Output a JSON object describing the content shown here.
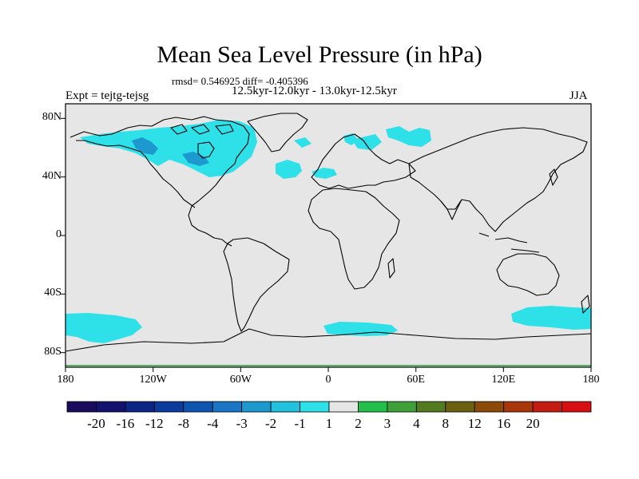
{
  "title": "Mean Sea Level Pressure (in hPa)",
  "stats": "rmsd= 0.546925 diff= -0.405396",
  "period": "12.5kyr-12.0kyr - 13.0kyr-12.5kyr",
  "experiment": "Expt = tejtg-tejsg",
  "season": "JJA",
  "axes": {
    "x_ticks": [
      {
        "value": -180,
        "label": "180"
      },
      {
        "value": -120,
        "label": "120W"
      },
      {
        "value": -60,
        "label": "60W"
      },
      {
        "value": 0,
        "label": "0"
      },
      {
        "value": 60,
        "label": "60E"
      },
      {
        "value": 120,
        "label": "120E"
      },
      {
        "value": 180,
        "label": "180"
      }
    ],
    "y_ticks": [
      {
        "value": 80,
        "label": "80N"
      },
      {
        "value": 40,
        "label": "40N"
      },
      {
        "value": 0,
        "label": "0"
      },
      {
        "value": -40,
        "label": "40S"
      },
      {
        "value": -80,
        "label": "80S"
      }
    ],
    "lon_range": [
      -180,
      180
    ],
    "lat_range": [
      -90,
      90
    ]
  },
  "colorbar": {
    "colors": [
      "#1a0b5e",
      "#13136f",
      "#0b2585",
      "#0b3b9c",
      "#0e55b0",
      "#1a76c4",
      "#1e99d0",
      "#22c1de",
      "#2ee0e8",
      "#e6e6e6",
      "#22c04a",
      "#3fa03a",
      "#537a1f",
      "#6b5f10",
      "#8b4a08",
      "#a8380c",
      "#c21d10",
      "#d80f10"
    ],
    "labels": [
      "-20",
      "-16",
      "-12",
      "-8",
      "-4",
      "-3",
      "-2",
      "-1",
      "1",
      "2",
      "3",
      "4",
      "8",
      "12",
      "16",
      "20"
    ]
  },
  "colors": {
    "background": "#e6e6e6",
    "neg1_cyan": "#2ee0e8",
    "neg2_blue": "#1e99d0"
  }
}
